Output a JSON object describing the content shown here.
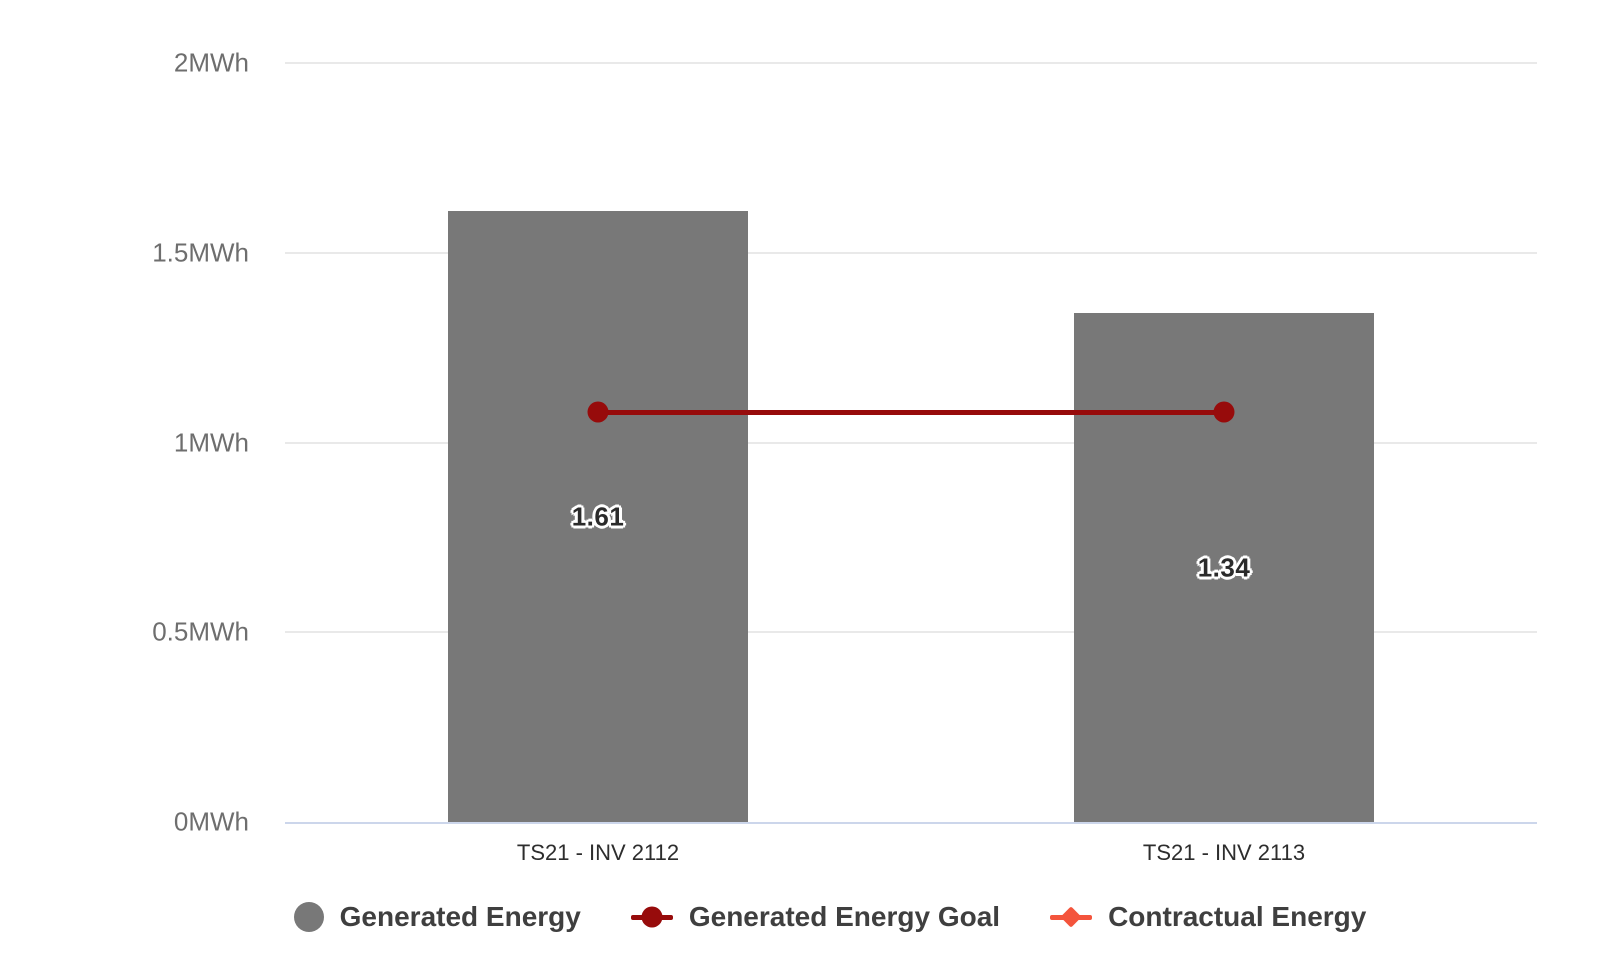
{
  "chart_data": {
    "type": "bar",
    "unit": "MWh",
    "categories": [
      "TS21 - INV 2112",
      "TS21 - INV 2113"
    ],
    "series": [
      {
        "name": "Generated Energy",
        "kind": "bar",
        "color": "#787878",
        "values": [
          1.61,
          1.34
        ],
        "data_labels": [
          "1.61",
          "1.34"
        ]
      },
      {
        "name": "Generated Energy Goal",
        "kind": "line",
        "color": "#970b0b",
        "values": [
          1.08,
          1.08
        ]
      },
      {
        "name": "Contractual Energy",
        "kind": "line",
        "color": "#f4543c",
        "values": []
      }
    ],
    "ylim": [
      0,
      2
    ],
    "yticks": [
      {
        "value": 0,
        "label": "0MWh"
      },
      {
        "value": 0.5,
        "label": "0.5MWh"
      },
      {
        "value": 1,
        "label": "1MWh"
      },
      {
        "value": 1.5,
        "label": "1.5MWh"
      },
      {
        "value": 2,
        "label": "2MWh"
      }
    ],
    "grid": true,
    "legend_position": "bottom",
    "legend": [
      {
        "label": "Generated Energy",
        "marker": "circle",
        "color": "#787878"
      },
      {
        "label": "Generated Energy Goal",
        "marker": "line-dot",
        "color": "#970b0b"
      },
      {
        "label": "Contractual Energy",
        "marker": "line-diamond",
        "color": "#f4543c"
      }
    ],
    "axis_line_color": "#ccd6eb",
    "gridline_color": "#e9e9e9"
  }
}
